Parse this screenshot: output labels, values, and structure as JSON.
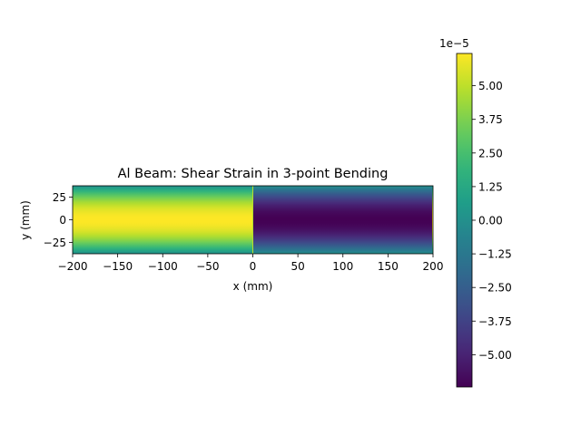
{
  "chart_data": {
    "type": "heatmap",
    "title": "Al Beam: Shear Strain in 3-point Bending",
    "xlabel": "x (mm)",
    "ylabel": "y (mm)",
    "xlim": [
      -200,
      200
    ],
    "ylim": [
      -37.5,
      37.5
    ],
    "xticks": [
      -200,
      -150,
      -100,
      -50,
      0,
      50,
      100,
      150,
      200
    ],
    "xtick_labels": [
      "−200",
      "−150",
      "−100",
      "−50",
      "0",
      "50",
      "100",
      "150",
      "200"
    ],
    "yticks": [
      -25,
      0,
      25
    ],
    "ytick_labels": [
      "−25",
      "0",
      "25"
    ],
    "field": {
      "description_of_regions": "left half positive, right half negative, parabolic through thickness",
      "regions": [
        {
          "x_from": -200,
          "x_to": 0,
          "peak": 6.2e-05
        },
        {
          "x_from": 0,
          "x_to": 199,
          "peak": -6.2e-05
        },
        {
          "x_from": 199,
          "x_to": 200,
          "peak": 6.2e-05
        }
      ],
      "half_thickness": 37.5
    },
    "colorbar": {
      "colormap": "viridis",
      "vmin": -6.2e-05,
      "vmax": 6.2e-05,
      "offset_label": "1e−5",
      "ticks": [
        5.0,
        3.75,
        2.5,
        1.25,
        0.0,
        -1.25,
        -2.5,
        -3.75,
        -5.0
      ],
      "tick_labels": [
        "5.00",
        "3.75",
        "2.50",
        "1.25",
        "0.00",
        "−1.25",
        "−2.50",
        "−3.75",
        "−5.00"
      ],
      "tick_scale": 1e-05
    }
  }
}
